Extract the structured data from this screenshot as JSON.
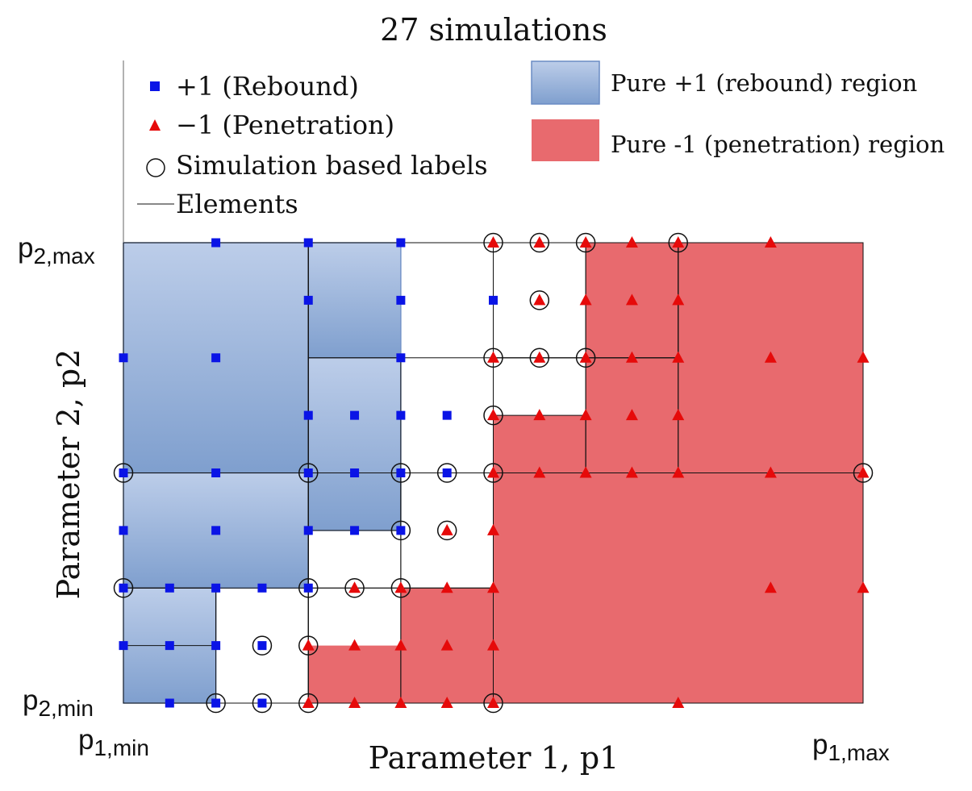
{
  "chart_data": {
    "type": "scatter",
    "title": "27 simulations",
    "xlabel": "Parameter 1, p1",
    "ylabel": "Parameter 2, p2",
    "xlim": [
      0,
      16
    ],
    "ylim": [
      0,
      8
    ],
    "x_tick_labels": {
      "min_main": "p",
      "min_sub": "1,min",
      "max_main": "p",
      "max_sub": "1,max"
    },
    "y_tick_labels": {
      "min_main": "p",
      "min_sub": "2,min",
      "max_main": "p",
      "max_sub": "2,max"
    },
    "legend": [
      {
        "label": "+1 (Rebound)",
        "marker": "square",
        "color": "#0a14e6"
      },
      {
        "label": "−1 (Penetration)",
        "marker": "triangle",
        "color": "#e60a0a"
      },
      {
        "label": "Simulation based labels",
        "marker": "circle",
        "color": "#000000"
      },
      {
        "label": "Elements",
        "marker": "line",
        "color": "#000000"
      }
    ],
    "region_legend": [
      {
        "label": "Pure +1 (rebound) region",
        "color": "#8aa8d6"
      },
      {
        "label": "Pure -1 (penetration) region",
        "color": "#e86a6e"
      }
    ],
    "regions": {
      "rebound": [
        [
          0,
          4,
          4,
          8
        ],
        [
          4,
          6,
          6,
          8
        ],
        [
          4,
          6,
          3,
          6
        ],
        [
          0,
          4,
          2,
          4
        ],
        [
          0,
          2,
          0,
          2
        ]
      ],
      "penetration": [
        [
          10,
          16,
          4,
          8
        ],
        [
          8,
          16,
          0,
          5
        ],
        [
          6,
          8,
          0,
          2
        ],
        [
          4,
          6,
          0,
          1
        ]
      ]
    },
    "elements": [
      [
        0,
        16,
        0,
        8
      ],
      [
        0,
        8,
        0,
        8
      ],
      [
        0,
        4,
        0,
        8
      ],
      [
        0,
        4,
        4,
        8
      ],
      [
        0,
        4,
        0,
        4
      ],
      [
        0,
        4,
        2,
        4
      ],
      [
        0,
        2,
        0,
        2
      ],
      [
        0,
        2,
        1,
        2
      ],
      [
        4,
        8,
        4,
        8
      ],
      [
        4,
        8,
        6,
        8
      ],
      [
        4,
        6,
        4,
        6
      ],
      [
        4,
        8,
        0,
        4
      ],
      [
        4,
        6,
        2,
        4
      ],
      [
        4,
        6,
        3,
        4
      ],
      [
        4,
        6,
        0,
        2
      ],
      [
        6,
        8,
        0,
        2
      ],
      [
        6,
        8,
        2,
        4
      ],
      [
        8,
        16,
        4,
        8
      ],
      [
        8,
        12,
        4,
        8
      ],
      [
        8,
        12,
        6,
        8
      ],
      [
        8,
        10,
        6,
        8
      ],
      [
        8,
        10,
        4,
        6
      ],
      [
        8,
        10,
        4,
        5
      ],
      [
        10,
        12,
        4,
        6
      ],
      [
        10,
        12,
        6,
        8
      ]
    ],
    "series": [
      {
        "name": "+1 (Rebound)",
        "marker": "square",
        "points": [
          [
            2,
            8
          ],
          [
            4,
            8
          ],
          [
            6,
            8
          ],
          [
            4,
            7
          ],
          [
            6,
            7
          ],
          [
            8,
            7
          ],
          [
            0,
            6
          ],
          [
            2,
            6
          ],
          [
            6,
            6
          ],
          [
            4,
            5
          ],
          [
            5,
            5
          ],
          [
            6,
            5
          ],
          [
            7,
            5
          ],
          [
            0,
            4
          ],
          [
            2,
            4
          ],
          [
            4,
            4
          ],
          [
            5,
            4
          ],
          [
            6,
            4
          ],
          [
            7,
            4
          ],
          [
            0,
            3
          ],
          [
            2,
            3
          ],
          [
            4,
            3
          ],
          [
            5,
            3
          ],
          [
            6,
            3
          ],
          [
            0,
            2
          ],
          [
            1,
            2
          ],
          [
            2,
            2
          ],
          [
            3,
            2
          ],
          [
            4,
            2
          ],
          [
            0,
            1
          ],
          [
            1,
            1
          ],
          [
            2,
            1
          ],
          [
            3,
            1
          ],
          [
            1,
            0
          ],
          [
            2,
            0
          ],
          [
            3,
            0
          ]
        ]
      },
      {
        "name": "−1 (Penetration)",
        "marker": "triangle",
        "points": [
          [
            8,
            8
          ],
          [
            9,
            8
          ],
          [
            10,
            8
          ],
          [
            11,
            8
          ],
          [
            12,
            8
          ],
          [
            14,
            8
          ],
          [
            9,
            7
          ],
          [
            10,
            7
          ],
          [
            11,
            7
          ],
          [
            12,
            7
          ],
          [
            8,
            6
          ],
          [
            9,
            6
          ],
          [
            10,
            6
          ],
          [
            11,
            6
          ],
          [
            12,
            6
          ],
          [
            14,
            6
          ],
          [
            16,
            6
          ],
          [
            8,
            5
          ],
          [
            9,
            5
          ],
          [
            10,
            5
          ],
          [
            11,
            5
          ],
          [
            12,
            5
          ],
          [
            8,
            4
          ],
          [
            9,
            4
          ],
          [
            10,
            4
          ],
          [
            11,
            4
          ],
          [
            12,
            4
          ],
          [
            14,
            4
          ],
          [
            16,
            4
          ],
          [
            7,
            3
          ],
          [
            8,
            3
          ],
          [
            5,
            2
          ],
          [
            6,
            2
          ],
          [
            7,
            2
          ],
          [
            8,
            2
          ],
          [
            14,
            2
          ],
          [
            16,
            2
          ],
          [
            4,
            1
          ],
          [
            5,
            1
          ],
          [
            6,
            1
          ],
          [
            7,
            1
          ],
          [
            8,
            1
          ],
          [
            4,
            0
          ],
          [
            5,
            0
          ],
          [
            6,
            0
          ],
          [
            7,
            0
          ],
          [
            8,
            0
          ],
          [
            12,
            0
          ]
        ]
      }
    ],
    "simulation_labels": [
      [
        8,
        8
      ],
      [
        9,
        8
      ],
      [
        10,
        8
      ],
      [
        12,
        8
      ],
      [
        9,
        7
      ],
      [
        8,
        6
      ],
      [
        9,
        6
      ],
      [
        10,
        6
      ],
      [
        8,
        5
      ],
      [
        0,
        4
      ],
      [
        4,
        4
      ],
      [
        6,
        4
      ],
      [
        7,
        4
      ],
      [
        8,
        4
      ],
      [
        16,
        4
      ],
      [
        6,
        3
      ],
      [
        7,
        3
      ],
      [
        0,
        2
      ],
      [
        4,
        2
      ],
      [
        5,
        2
      ],
      [
        6,
        2
      ],
      [
        3,
        1
      ],
      [
        4,
        1
      ],
      [
        2,
        0
      ],
      [
        3,
        0
      ],
      [
        4,
        0
      ],
      [
        8,
        0
      ]
    ]
  }
}
